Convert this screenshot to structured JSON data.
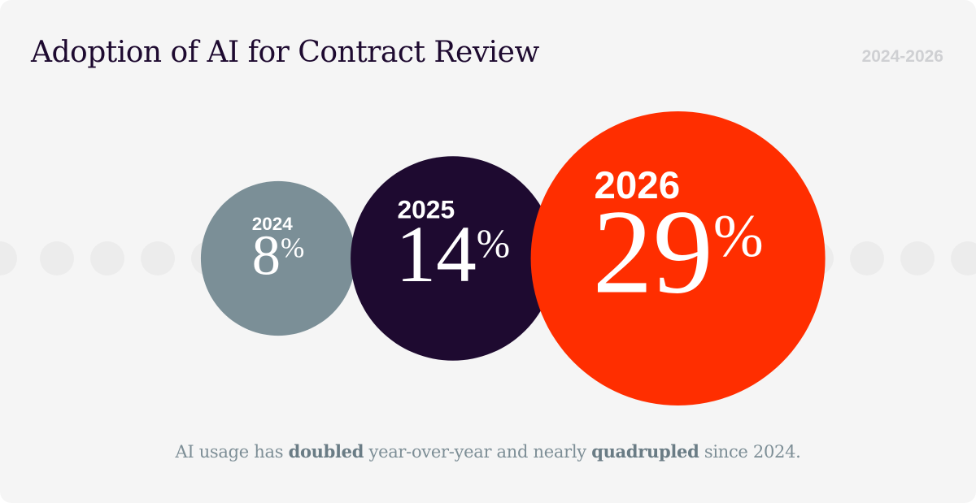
{
  "header": {
    "title": "Adoption of AI for Contract Review",
    "range": "2024-2026"
  },
  "chart_data": {
    "type": "bubble",
    "title": "Adoption of AI for Contract Review",
    "unit": "%",
    "categories": [
      "2024",
      "2025",
      "2026"
    ],
    "values": [
      8,
      14,
      29
    ],
    "labels": [
      "8%",
      "14%",
      "29%"
    ],
    "colors": [
      "#7b8f97",
      "#1e0a30",
      "#ff2e00"
    ]
  },
  "footnote": {
    "part1": "AI usage has ",
    "bold1": "doubled",
    "part2": " year-over-year and nearly ",
    "bold2": "quadrupled",
    "part3": " since 2024."
  }
}
